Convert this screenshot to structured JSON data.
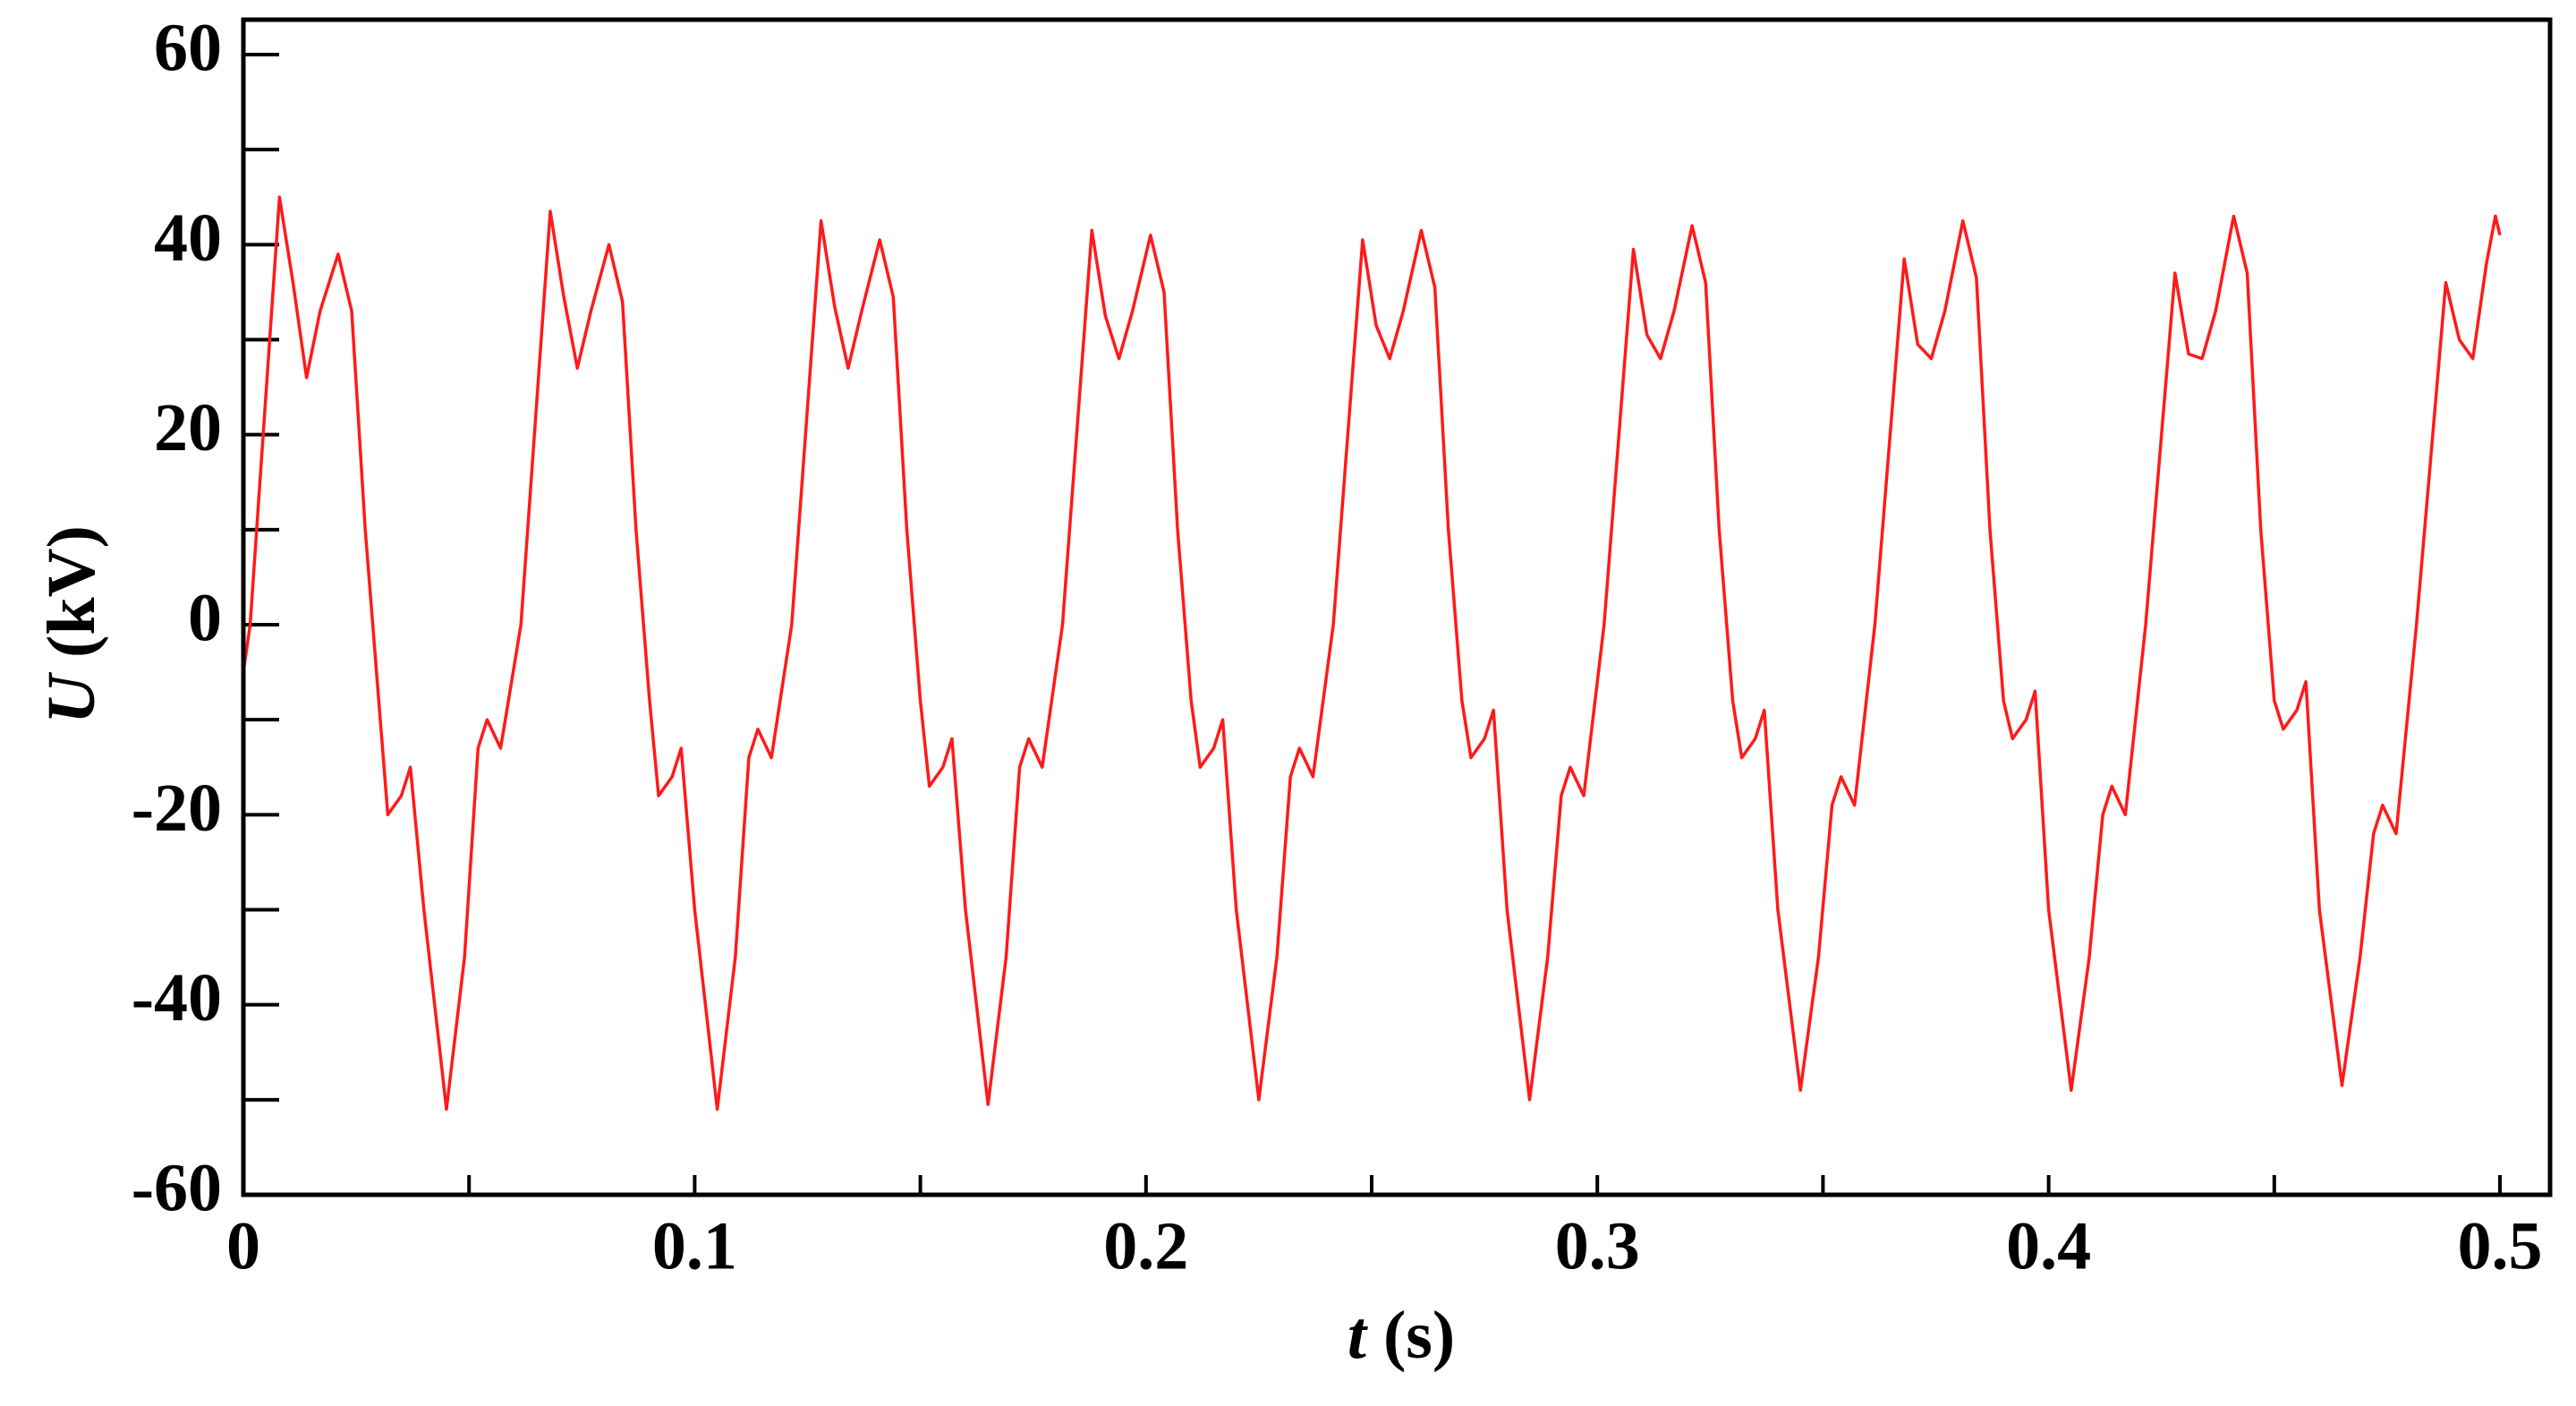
{
  "chart_data": {
    "type": "line",
    "xlabel": {
      "symbol": "t",
      "unit": "(s)"
    },
    "ylabel": {
      "symbol": "U",
      "unit": "(kV)"
    },
    "xlim": [
      0,
      0.5
    ],
    "ylim": [
      -60,
      60
    ],
    "xticks": [
      0,
      0.1,
      0.2,
      0.3,
      0.4,
      0.5
    ],
    "xticks_minor": [
      0.05,
      0.15,
      0.25,
      0.35,
      0.45
    ],
    "yticks": [
      -60,
      -40,
      -20,
      0,
      20,
      40,
      60
    ],
    "yticks_minor": [
      -50,
      -30,
      -10,
      10,
      30,
      50
    ],
    "series": [
      {
        "color": "#ff1a1a",
        "x": [
          0,
          0.0015,
          0.008,
          0.011,
          0.014,
          0.017,
          0.021,
          0.024,
          0.027,
          0.03,
          0.032,
          0.035,
          0.037,
          0.04,
          0.045,
          0.049,
          0.052,
          0.054,
          0.057,
          0.0615,
          0.068,
          0.071,
          0.074,
          0.077,
          0.081,
          0.084,
          0.087,
          0.09,
          0.092,
          0.095,
          0.097,
          0.1,
          0.105,
          0.109,
          0.112,
          0.114,
          0.117,
          0.1215,
          0.128,
          0.131,
          0.134,
          0.137,
          0.141,
          0.144,
          0.147,
          0.15,
          0.152,
          0.155,
          0.157,
          0.16,
          0.165,
          0.169,
          0.172,
          0.174,
          0.177,
          0.1815,
          0.188,
          0.191,
          0.194,
          0.197,
          0.201,
          0.204,
          0.207,
          0.21,
          0.212,
          0.215,
          0.217,
          0.22,
          0.225,
          0.229,
          0.232,
          0.234,
          0.237,
          0.2415,
          0.248,
          0.251,
          0.254,
          0.257,
          0.261,
          0.264,
          0.267,
          0.27,
          0.272,
          0.275,
          0.277,
          0.28,
          0.285,
          0.289,
          0.292,
          0.294,
          0.297,
          0.3015,
          0.308,
          0.311,
          0.314,
          0.317,
          0.321,
          0.324,
          0.327,
          0.33,
          0.332,
          0.335,
          0.337,
          0.34,
          0.345,
          0.349,
          0.352,
          0.354,
          0.357,
          0.3615,
          0.368,
          0.371,
          0.374,
          0.377,
          0.381,
          0.384,
          0.387,
          0.39,
          0.392,
          0.395,
          0.397,
          0.4,
          0.405,
          0.409,
          0.412,
          0.414,
          0.417,
          0.4215,
          0.428,
          0.431,
          0.434,
          0.437,
          0.441,
          0.444,
          0.447,
          0.45,
          0.452,
          0.455,
          0.457,
          0.46,
          0.465,
          0.469,
          0.472,
          0.474,
          0.477,
          0.4815,
          0.488,
          0.491,
          0.494,
          0.497,
          0.499,
          0.5
        ],
        "values": [
          -5,
          0,
          45,
          36,
          26,
          33,
          39,
          33,
          10,
          -8,
          -20,
          -18,
          -15,
          -30,
          -51,
          -35,
          -13,
          -10,
          -13,
          0,
          43.5,
          34.5,
          27,
          33,
          40,
          34,
          10,
          -8,
          -18,
          -16,
          -13,
          -30,
          -51,
          -35,
          -14,
          -11,
          -14,
          0,
          42.5,
          33.5,
          27,
          33,
          40.5,
          34.5,
          10,
          -8,
          -17,
          -15,
          -12,
          -30,
          -50.5,
          -35,
          -15,
          -12,
          -15,
          0,
          41.5,
          32.5,
          28,
          33,
          41,
          35,
          10,
          -8,
          -15,
          -13,
          -10,
          -30,
          -50,
          -35,
          -16,
          -13,
          -16,
          0,
          40.5,
          31.5,
          28,
          33,
          41.5,
          35.5,
          10,
          -8,
          -14,
          -12,
          -9,
          -30,
          -50,
          -35,
          -18,
          -15,
          -18,
          0,
          39.5,
          30.5,
          28,
          33,
          42,
          36,
          10,
          -8,
          -14,
          -12,
          -9,
          -30,
          -49,
          -35,
          -19,
          -16,
          -19,
          0,
          38.5,
          29.5,
          28,
          33,
          42.5,
          36.5,
          10,
          -8,
          -12,
          -10,
          -7,
          -30,
          -49,
          -35,
          -20,
          -17,
          -20,
          0,
          37,
          28.5,
          28,
          33,
          43,
          37,
          10,
          -8,
          -11,
          -9,
          -6,
          -30,
          -48.5,
          -35,
          -22,
          -19,
          -22,
          0,
          36,
          30,
          28,
          38,
          43,
          41
        ]
      }
    ]
  }
}
